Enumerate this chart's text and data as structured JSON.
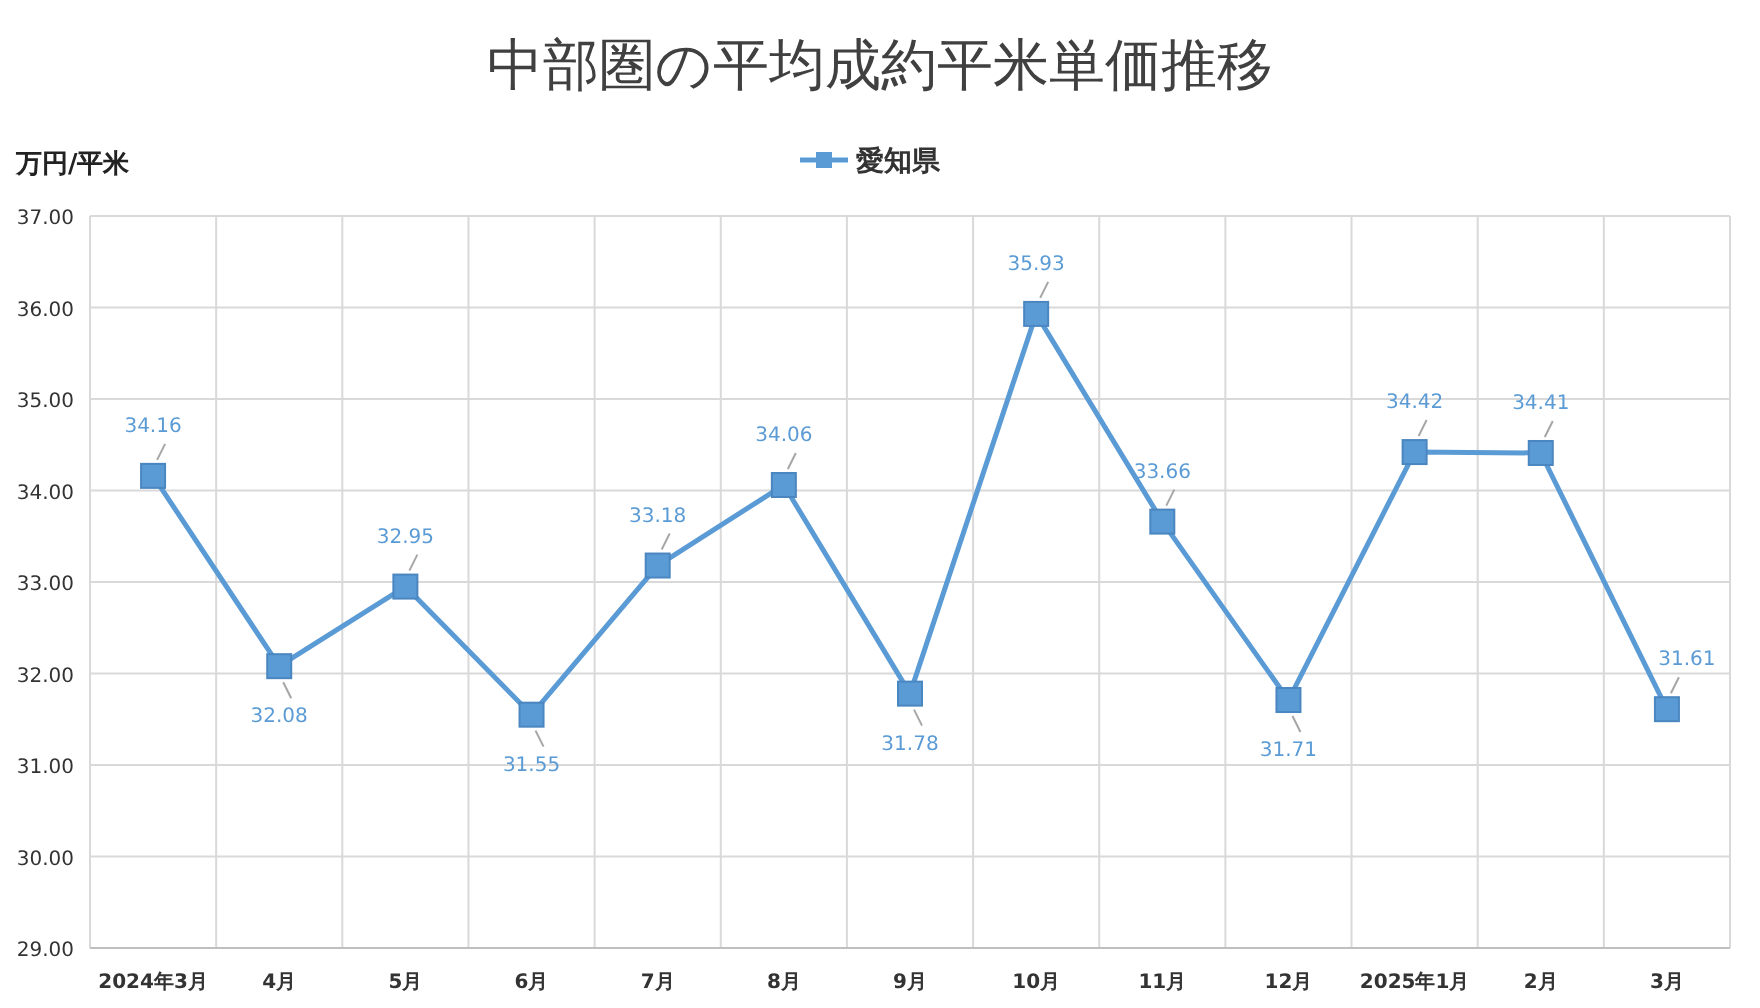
{
  "chart_data": {
    "type": "line",
    "title": "中部圏の平均成約平米単価推移",
    "ylabel": "万円/平米",
    "categories": [
      "2024年3月",
      "4月",
      "5月",
      "6月",
      "7月",
      "8月",
      "9月",
      "10月",
      "11月",
      "12月",
      "2025年1月",
      "2月",
      "3月"
    ],
    "series": [
      {
        "name": "愛知県",
        "color": "#5b9bd5",
        "values": [
          34.16,
          32.08,
          32.95,
          31.55,
          33.18,
          34.06,
          31.78,
          35.93,
          33.66,
          31.71,
          34.42,
          34.41,
          31.61
        ]
      }
    ],
    "ylim": [
      29,
      37
    ],
    "yticks": [
      {
        "value": 29,
        "label": "29.00"
      },
      {
        "value": 30,
        "label": "30.00"
      },
      {
        "value": 31,
        "label": "31.00"
      },
      {
        "value": 32,
        "label": "32.00"
      },
      {
        "value": 33,
        "label": "33.00"
      },
      {
        "value": 34,
        "label": "34.00"
      },
      {
        "value": 35,
        "label": "35.00"
      },
      {
        "value": 36,
        "label": "36.00"
      },
      {
        "value": 37,
        "label": "37.00"
      }
    ],
    "grid": true,
    "legend": "top",
    "marker": "square",
    "line_style": "solid",
    "data_labels": true
  }
}
